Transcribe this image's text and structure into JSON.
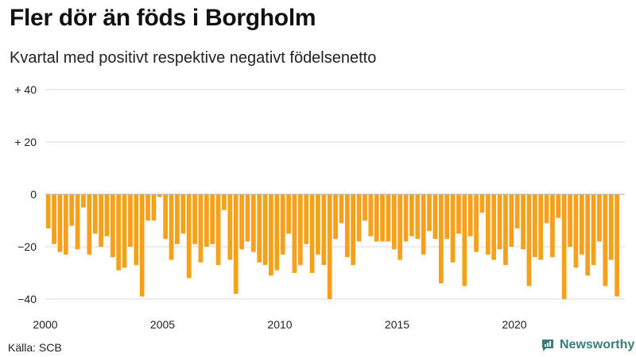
{
  "title": "Fler dör än föds i Borgholm",
  "subtitle": "Kvartal med positivt respektive negativt födelsenetto",
  "source": "Källa: SCB",
  "brand": "Newsworthy",
  "colors": {
    "bar": "#f7a11a",
    "grid": "#d9d9d9",
    "zero": "#b5b5b5",
    "brand": "#3b7d78"
  },
  "chart_data": {
    "type": "bar",
    "title": "Fler dör än föds i Borgholm",
    "subtitle": "Kvartal med positivt respektive negativt födelsenetto",
    "xlabel": "",
    "ylabel": "",
    "ylim": [
      -42,
      40
    ],
    "y_ticks": [
      {
        "value": 40,
        "label": "+ 40"
      },
      {
        "value": 20,
        "label": "+ 20"
      },
      {
        "value": 0,
        "label": "0"
      },
      {
        "value": -20,
        "label": "−20"
      },
      {
        "value": -40,
        "label": "−40"
      }
    ],
    "x_ticks": [
      {
        "value": 2000,
        "label": "2000"
      },
      {
        "value": 2005,
        "label": "2005"
      },
      {
        "value": 2010,
        "label": "2010"
      },
      {
        "value": 2015,
        "label": "2015"
      },
      {
        "value": 2020,
        "label": "2020"
      }
    ],
    "x_range": [
      2000,
      2024.75
    ],
    "start_year": 2000,
    "periods_per_year": 4,
    "values": [
      -13,
      -19,
      -22,
      -23,
      -12,
      -21,
      -5,
      -23,
      -15,
      -20,
      -16,
      -24,
      -29,
      -28,
      -20,
      -27,
      -39,
      -10,
      -10,
      -1,
      -17,
      -25,
      -19,
      -15,
      -32,
      -19,
      -26,
      -20,
      -19,
      -27,
      -6,
      -25,
      -38,
      -21,
      -18,
      -22,
      -26,
      -27,
      -31,
      -29,
      -23,
      -15,
      -30,
      -27,
      -19,
      -30,
      -23,
      -27,
      -40,
      -17,
      -11,
      -24,
      -27,
      -18,
      -10,
      -16,
      -18,
      -18,
      -18,
      -21,
      -25,
      -18,
      -16,
      -17,
      -23,
      -14,
      -17,
      -34,
      -17,
      -26,
      -15,
      -35,
      -16,
      -22,
      -7,
      -23,
      -25,
      -21,
      -27,
      -20,
      -13,
      -21,
      -35,
      -24,
      -25,
      -11,
      -24,
      -9,
      -40,
      -20,
      -28,
      -23,
      -31,
      -27,
      -18,
      -35,
      -25,
      -39
    ]
  }
}
